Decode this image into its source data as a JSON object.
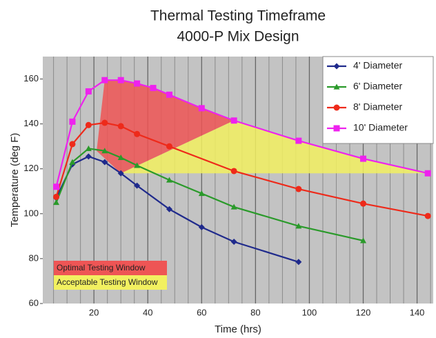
{
  "chart_data": {
    "type": "line",
    "title": "Thermal Testing Timeframe",
    "subtitle": "4000-P Mix Design",
    "xlabel": "Time (hrs)",
    "ylabel": "Temperature (deg F)",
    "xlim": [
      1,
      146
    ],
    "ylim": [
      60,
      170
    ],
    "xticks": [
      20,
      40,
      60,
      80,
      100,
      120,
      140
    ],
    "xminorticks": [
      5,
      10,
      15,
      25,
      30,
      35,
      45,
      50,
      55,
      65,
      70,
      75,
      85,
      90,
      95,
      105,
      110,
      115,
      125,
      130,
      135,
      145
    ],
    "yticks": [
      60,
      80,
      100,
      120,
      140,
      160
    ],
    "grid": true,
    "legend": "upper right",
    "series": [
      {
        "name": "4' Diameter",
        "color": "#1f2a8c",
        "marker": "diamond",
        "x": [
          6,
          12,
          18,
          24,
          30,
          36,
          48,
          60,
          72,
          96
        ],
        "values": [
          107,
          122,
          125.5,
          123,
          118,
          112.5,
          102,
          94,
          87.5,
          78.5
        ]
      },
      {
        "name": "6' Diameter",
        "color": "#2a9a2a",
        "marker": "triangle",
        "x": [
          6,
          12,
          18,
          24,
          30,
          36,
          48,
          60,
          72,
          96,
          120
        ],
        "values": [
          105,
          123,
          129,
          128,
          125,
          121.5,
          115,
          109,
          103,
          94.5,
          88
        ]
      },
      {
        "name": "8' Diameter",
        "color": "#ee2a1a",
        "marker": "circle",
        "x": [
          6,
          12,
          18,
          24,
          30,
          36,
          48,
          72,
          96,
          120,
          144
        ],
        "values": [
          107.5,
          131,
          139.5,
          140.5,
          139,
          135.5,
          130,
          119,
          111,
          104.5,
          99
        ]
      },
      {
        "name": "10' Diameter",
        "color": "#ee22ee",
        "marker": "square",
        "x": [
          6,
          12,
          18,
          24,
          30,
          36,
          42,
          48,
          60,
          72,
          96,
          120,
          144
        ],
        "values": [
          112,
          141,
          154.5,
          159.5,
          159.5,
          158,
          156,
          153,
          147,
          141.5,
          132.5,
          124.5,
          118
        ]
      }
    ],
    "regions": [
      {
        "name": "Optimal Testing Window",
        "color": "#ee5555",
        "x": [
          21,
          24,
          30,
          36,
          48,
          60,
          72,
          30
        ],
        "y": [
          128,
          159.5,
          159.5,
          158,
          153,
          147,
          141.5,
          118
        ]
      },
      {
        "name": "Acceptable Testing Window",
        "color": "#f2f060",
        "x": [
          30,
          72,
          96,
          120,
          144
        ],
        "y": [
          118,
          141.5,
          132.5,
          124.5,
          118
        ]
      }
    ]
  }
}
